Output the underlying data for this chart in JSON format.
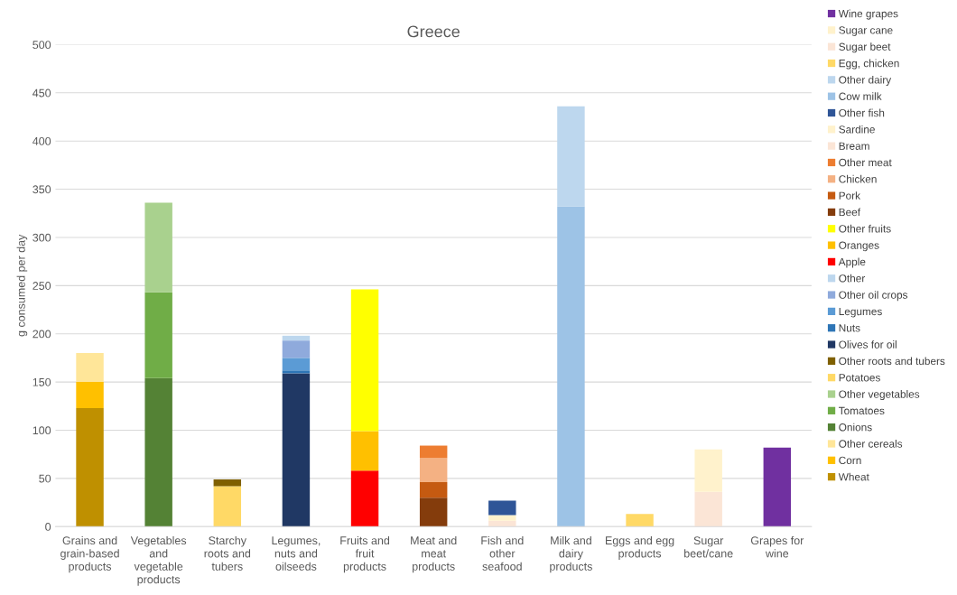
{
  "chart_data": {
    "type": "bar",
    "title": "Greece",
    "ylabel": "g consumed per day",
    "stacked": true,
    "legend": "right",
    "grid": "y",
    "categories": [
      "Grains and grain-based products",
      "Vegetables and vegetable products",
      "Starchy roots and tubers",
      "Legumes, nuts and oilseeds",
      "Fruits and fruit products",
      "Meat and meat products",
      "Fish and other seafood",
      "Milk and dairy products",
      "Eggs and egg products",
      "Sugar beet/cane",
      "Grapes for wine"
    ],
    "ylim": [
      0,
      500
    ],
    "yticks": [
      0,
      50,
      100,
      150,
      200,
      250,
      300,
      350,
      400,
      450,
      500
    ],
    "series": [
      {
        "name": "Wheat",
        "color": "#bf9000",
        "values": [
          123,
          null,
          null,
          null,
          null,
          null,
          null,
          null,
          null,
          null,
          null
        ]
      },
      {
        "name": "Corn",
        "color": "#ffc000",
        "values": [
          27,
          null,
          null,
          null,
          null,
          null,
          null,
          null,
          null,
          null,
          null
        ]
      },
      {
        "name": "Other cereals",
        "color": "#ffe699",
        "values": [
          30,
          null,
          null,
          null,
          null,
          null,
          null,
          null,
          null,
          null,
          null
        ]
      },
      {
        "name": "Onions",
        "color": "#548235",
        "values": [
          null,
          154,
          null,
          null,
          null,
          null,
          null,
          null,
          null,
          null,
          null
        ]
      },
      {
        "name": "Tomatoes",
        "color": "#70ad47",
        "values": [
          null,
          89,
          null,
          null,
          null,
          null,
          null,
          null,
          null,
          null,
          null
        ]
      },
      {
        "name": "Other vegetables",
        "color": "#a9d18e",
        "values": [
          null,
          93,
          null,
          null,
          null,
          null,
          null,
          null,
          null,
          null,
          null
        ]
      },
      {
        "name": "Potatoes",
        "color": "#ffd966",
        "values": [
          null,
          null,
          42,
          null,
          null,
          null,
          null,
          null,
          null,
          null,
          null
        ]
      },
      {
        "name": "Other roots and tubers",
        "color": "#7f6000",
        "values": [
          null,
          null,
          7,
          null,
          null,
          null,
          null,
          null,
          null,
          null,
          null
        ]
      },
      {
        "name": "Olives for oil",
        "color": "#203864",
        "values": [
          null,
          null,
          null,
          159,
          null,
          null,
          null,
          null,
          null,
          null,
          null
        ]
      },
      {
        "name": "Nuts",
        "color": "#2e75b6",
        "values": [
          null,
          null,
          null,
          3,
          null,
          null,
          null,
          null,
          null,
          null,
          null
        ]
      },
      {
        "name": "Legumes",
        "color": "#5b9bd5",
        "values": [
          null,
          null,
          null,
          13,
          null,
          null,
          null,
          null,
          null,
          null,
          null
        ]
      },
      {
        "name": "Other oil crops",
        "color": "#8faadc",
        "values": [
          null,
          null,
          null,
          18,
          null,
          null,
          null,
          null,
          null,
          null,
          null
        ]
      },
      {
        "name": "Other",
        "color": "#bdd7ee",
        "values": [
          null,
          null,
          null,
          5,
          null,
          null,
          null,
          null,
          null,
          null,
          null
        ]
      },
      {
        "name": "Apple",
        "color": "#ff0000",
        "values": [
          null,
          null,
          null,
          null,
          58,
          null,
          null,
          null,
          null,
          null,
          null
        ]
      },
      {
        "name": "Oranges",
        "color": "#ffc000",
        "values": [
          null,
          null,
          null,
          null,
          41,
          null,
          null,
          null,
          null,
          null,
          null
        ]
      },
      {
        "name": "Other fruits",
        "color": "#ffff00",
        "values": [
          null,
          null,
          null,
          null,
          147,
          null,
          null,
          null,
          null,
          null,
          null
        ]
      },
      {
        "name": "Beef",
        "color": "#843c0c",
        "values": [
          null,
          null,
          null,
          null,
          null,
          30,
          null,
          null,
          null,
          null,
          null
        ]
      },
      {
        "name": "Pork",
        "color": "#c55a11",
        "values": [
          null,
          null,
          null,
          null,
          null,
          16,
          null,
          null,
          null,
          null,
          null
        ]
      },
      {
        "name": "Chicken",
        "color": "#f4b183",
        "values": [
          null,
          null,
          null,
          null,
          null,
          25,
          null,
          null,
          null,
          null,
          null
        ]
      },
      {
        "name": "Other meat",
        "color": "#ed7d31",
        "values": [
          null,
          null,
          null,
          null,
          null,
          13,
          null,
          null,
          null,
          null,
          null
        ]
      },
      {
        "name": "Bream",
        "color": "#fbe5d6",
        "values": [
          null,
          null,
          null,
          null,
          null,
          null,
          6,
          null,
          null,
          null,
          null
        ]
      },
      {
        "name": "Sardine",
        "color": "#fff2cc",
        "values": [
          null,
          null,
          null,
          null,
          null,
          null,
          6,
          null,
          null,
          null,
          null
        ]
      },
      {
        "name": "Other fish",
        "color": "#2f5597",
        "values": [
          null,
          null,
          null,
          null,
          null,
          null,
          15,
          null,
          null,
          null,
          null
        ]
      },
      {
        "name": "Cow milk",
        "color": "#9dc3e6",
        "values": [
          null,
          null,
          null,
          null,
          null,
          null,
          null,
          332,
          null,
          null,
          null
        ]
      },
      {
        "name": "Other dairy",
        "color": "#bdd7ee",
        "values": [
          null,
          null,
          null,
          null,
          null,
          null,
          null,
          104,
          null,
          null,
          null
        ]
      },
      {
        "name": "Egg, chicken",
        "color": "#ffd966",
        "values": [
          null,
          null,
          null,
          null,
          null,
          null,
          null,
          null,
          13,
          null,
          null
        ]
      },
      {
        "name": "Sugar beet",
        "color": "#fbe5d6",
        "values": [
          null,
          null,
          null,
          null,
          null,
          null,
          null,
          null,
          null,
          36,
          null
        ]
      },
      {
        "name": "Sugar cane",
        "color": "#fff2cc",
        "values": [
          null,
          null,
          null,
          null,
          null,
          null,
          null,
          null,
          null,
          44,
          null
        ]
      },
      {
        "name": "Wine grapes",
        "color": "#7030a0",
        "values": [
          null,
          null,
          null,
          null,
          null,
          null,
          null,
          null,
          null,
          null,
          82
        ]
      }
    ]
  }
}
